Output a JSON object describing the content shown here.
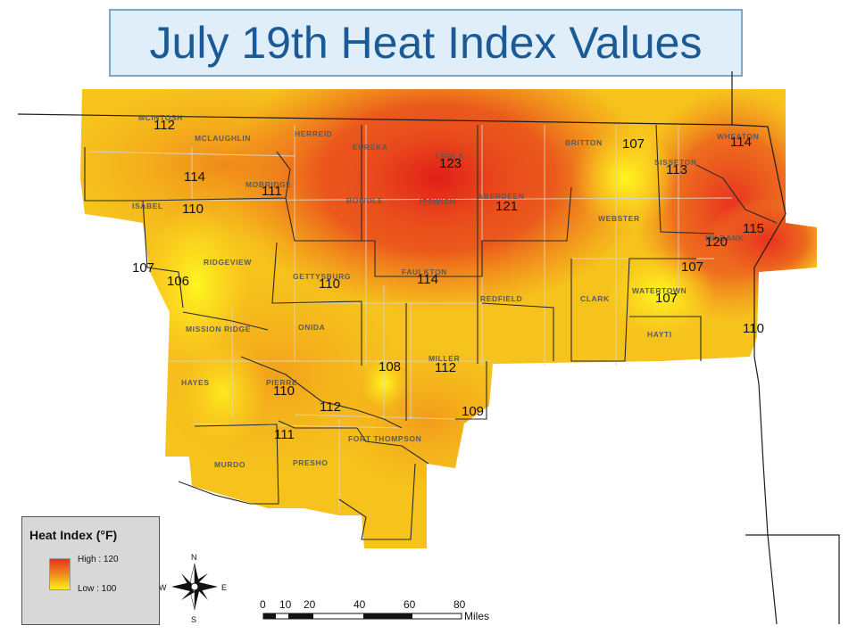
{
  "title": "July 19th Heat Index Values",
  "cities": [
    {
      "id": "mcintosh",
      "name": "MCINTOSH"
    },
    {
      "id": "mclaughlin",
      "name": "MCLAUGHLIN"
    },
    {
      "id": "herreid",
      "name": "HERREID"
    },
    {
      "id": "eureka",
      "name": "EUREKA"
    },
    {
      "id": "leola",
      "name": "LEOLA"
    },
    {
      "id": "britton",
      "name": "BRITTON"
    },
    {
      "id": "sisseton",
      "name": "SISSETON"
    },
    {
      "id": "wheaton",
      "name": "WHEATON"
    },
    {
      "id": "mobridge",
      "name": "MOBRIDGE"
    },
    {
      "id": "isabel",
      "name": "ISABEL"
    },
    {
      "id": "bowdle",
      "name": "BOWDLE"
    },
    {
      "id": "ipswich",
      "name": "IPSWICH"
    },
    {
      "id": "aberdeen",
      "name": "ABERDEEN"
    },
    {
      "id": "webster",
      "name": "WEBSTER"
    },
    {
      "id": "milbank",
      "name": "MILBANK"
    },
    {
      "id": "ridgeview",
      "name": "RIDGEVIEW"
    },
    {
      "id": "gettysburg",
      "name": "GETTYSBURG"
    },
    {
      "id": "faulkton",
      "name": "FAULKTON"
    },
    {
      "id": "redfield",
      "name": "REDFIELD"
    },
    {
      "id": "clark",
      "name": "CLARK"
    },
    {
      "id": "watertown",
      "name": "WATERTOWN"
    },
    {
      "id": "mission-ridge",
      "name": "MISSION RIDGE"
    },
    {
      "id": "onida",
      "name": "ONIDA"
    },
    {
      "id": "hayti",
      "name": "HAYTI"
    },
    {
      "id": "miller",
      "name": "MILLER"
    },
    {
      "id": "hayes",
      "name": "HAYES"
    },
    {
      "id": "pierre",
      "name": "PIERRE"
    },
    {
      "id": "fort-thompson",
      "name": "FORT THOMPSON"
    },
    {
      "id": "murdo",
      "name": "MURDO"
    },
    {
      "id": "presho",
      "name": "PRESHO"
    }
  ],
  "values": [
    "112",
    "114",
    "110",
    "111",
    "123",
    "121",
    "107",
    "113",
    "114",
    "115",
    "120",
    "107",
    "107",
    "106",
    "110",
    "114",
    "107",
    "110",
    "108",
    "112",
    "110",
    "112",
    "109",
    "111"
  ],
  "legend": {
    "title": "Heat Index (°F)",
    "high_label": "High : 120",
    "low_label": "Low : 100",
    "high_color": "#e8321e",
    "low_color": "#ffee20"
  },
  "compass": {
    "n": "N",
    "s": "S",
    "e": "E",
    "w": "W"
  },
  "scalebar": {
    "ticks": [
      "0",
      "10",
      "20",
      "40",
      "60",
      "80"
    ],
    "unit": "Miles"
  }
}
